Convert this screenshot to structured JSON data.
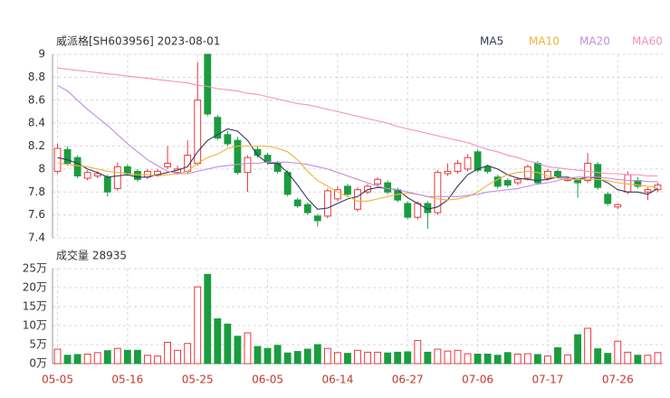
{
  "chart_data": {
    "type": "candlestick",
    "title": "威派格[SH603956] 2023-08-01",
    "categories": [
      "05-05",
      null,
      null,
      null,
      null,
      null,
      null,
      "05-16",
      null,
      null,
      null,
      null,
      null,
      null,
      "05-25",
      null,
      null,
      null,
      null,
      null,
      null,
      "06-05",
      null,
      null,
      null,
      null,
      null,
      null,
      "06-14",
      null,
      null,
      null,
      null,
      null,
      null,
      "06-27",
      null,
      null,
      null,
      null,
      null,
      null,
      "07-06",
      null,
      null,
      null,
      null,
      null,
      null,
      "07-17",
      null,
      null,
      null,
      null,
      null,
      null,
      "07-26",
      null,
      null,
      null,
      null
    ],
    "open": [
      7.98,
      8.17,
      8.1,
      7.92,
      7.94,
      7.93,
      7.83,
      8.02,
      7.98,
      7.93,
      7.95,
      8.02,
      7.97,
      7.98,
      8.05,
      9.0,
      8.45,
      8.3,
      8.25,
      7.97,
      8.17,
      8.12,
      8.05,
      7.97,
      7.73,
      7.69,
      7.59,
      7.59,
      7.74,
      7.85,
      7.65,
      7.8,
      7.87,
      7.88,
      7.82,
      7.7,
      7.58,
      7.7,
      7.62,
      7.96,
      7.98,
      8.0,
      8.15,
      8.02,
      7.93,
      7.9,
      7.88,
      7.92,
      8.05,
      7.92,
      7.98,
      7.9,
      7.9,
      7.9,
      8.04,
      7.78,
      7.67,
      7.8,
      7.9,
      7.8,
      7.82
    ],
    "high": [
      8.22,
      8.2,
      8.12,
      7.99,
      7.98,
      7.95,
      8.06,
      8.04,
      8.0,
      8.0,
      8.0,
      8.2,
      8.03,
      8.25,
      8.93,
      9.0,
      8.47,
      8.33,
      8.28,
      8.12,
      8.2,
      8.14,
      8.07,
      7.99,
      7.75,
      7.71,
      7.61,
      7.83,
      7.85,
      7.87,
      7.84,
      7.87,
      7.93,
      7.9,
      7.84,
      7.72,
      7.72,
      7.72,
      7.99,
      8.05,
      8.08,
      8.13,
      8.17,
      8.04,
      7.95,
      7.92,
      7.93,
      8.04,
      8.07,
      8.0,
      8.0,
      7.93,
      7.92,
      8.14,
      8.06,
      7.8,
      7.7,
      7.98,
      7.93,
      7.84,
      7.88
    ],
    "low": [
      7.96,
      8.03,
      7.92,
      7.9,
      7.92,
      7.76,
      7.81,
      7.94,
      7.89,
      7.91,
      7.93,
      8.0,
      7.95,
      7.96,
      8.03,
      8.46,
      8.25,
      8.2,
      7.95,
      7.8,
      8.1,
      8.04,
      7.96,
      7.76,
      7.66,
      7.6,
      7.5,
      7.57,
      7.72,
      7.76,
      7.63,
      7.78,
      7.85,
      7.78,
      7.71,
      7.56,
      7.56,
      7.48,
      7.6,
      7.94,
      7.96,
      7.98,
      7.97,
      7.96,
      7.83,
      7.84,
      7.86,
      7.9,
      7.86,
      7.9,
      7.92,
      7.89,
      7.75,
      7.88,
      7.82,
      7.68,
      7.65,
      7.78,
      7.83,
      7.73,
      7.8
    ],
    "close": [
      8.18,
      8.05,
      7.94,
      7.97,
      7.96,
      7.8,
      8.02,
      7.96,
      7.91,
      7.98,
      7.98,
      8.05,
      8.0,
      8.12,
      8.6,
      8.48,
      8.27,
      8.22,
      7.97,
      8.1,
      8.12,
      8.06,
      7.98,
      7.78,
      7.68,
      7.62,
      7.55,
      7.81,
      7.82,
      7.78,
      7.82,
      7.85,
      7.91,
      7.8,
      7.73,
      7.58,
      7.7,
      7.62,
      7.97,
      7.98,
      8.05,
      8.1,
      7.99,
      7.98,
      7.85,
      7.86,
      7.91,
      8.02,
      7.88,
      7.98,
      7.94,
      7.91,
      7.88,
      8.05,
      7.84,
      7.7,
      7.69,
      7.95,
      7.85,
      7.82,
      7.86
    ],
    "up_color": "#e8383d",
    "down_color": "#1a9c3f",
    "series": [
      {
        "name": "MA5",
        "color": "#333a5c",
        "values": [
          8.1,
          8.08,
          8.05,
          8.0,
          7.97,
          7.93,
          7.94,
          7.95,
          7.93,
          7.93,
          7.95,
          7.97,
          7.99,
          8.02,
          8.15,
          8.25,
          8.3,
          8.35,
          8.33,
          8.25,
          8.12,
          8.05,
          8.05,
          7.97,
          7.86,
          7.74,
          7.65,
          7.66,
          7.7,
          7.74,
          7.76,
          7.82,
          7.84,
          7.83,
          7.82,
          7.75,
          7.7,
          7.65,
          7.67,
          7.73,
          7.85,
          7.95,
          8.0,
          8.03,
          8.0,
          7.95,
          7.92,
          7.91,
          7.9,
          7.91,
          7.93,
          7.93,
          7.91,
          7.93,
          7.92,
          7.88,
          7.82,
          7.8,
          7.8,
          7.78,
          7.83
        ]
      },
      {
        "name": "MA10",
        "color": "#f2b335",
        "values": [
          8.05,
          8.04,
          8.03,
          8.02,
          8.0,
          7.98,
          7.97,
          7.96,
          7.95,
          7.95,
          7.94,
          7.95,
          7.96,
          7.98,
          8.05,
          8.1,
          8.13,
          8.18,
          8.2,
          8.2,
          8.2,
          8.2,
          8.18,
          8.15,
          8.08,
          7.98,
          7.9,
          7.85,
          7.8,
          7.76,
          7.72,
          7.72,
          7.74,
          7.76,
          7.78,
          7.79,
          7.78,
          7.76,
          7.74,
          7.73,
          7.74,
          7.76,
          7.8,
          7.86,
          7.91,
          7.95,
          7.97,
          7.98,
          7.97,
          7.94,
          7.92,
          7.91,
          7.91,
          7.91,
          7.91,
          7.9,
          7.88,
          7.87,
          7.86,
          7.85,
          7.84
        ]
      },
      {
        "name": "MA20",
        "color": "#c48de0",
        "values": [
          8.73,
          8.68,
          8.6,
          8.52,
          8.45,
          8.38,
          8.3,
          8.22,
          8.15,
          8.08,
          8.03,
          7.98,
          7.96,
          7.96,
          7.98,
          8.0,
          8.02,
          8.03,
          8.04,
          8.05,
          8.05,
          8.06,
          8.06,
          8.06,
          8.05,
          8.04,
          8.02,
          8.0,
          7.97,
          7.94,
          7.91,
          7.88,
          7.85,
          7.83,
          7.82,
          7.8,
          7.78,
          7.76,
          7.76,
          7.76,
          7.76,
          7.77,
          7.78,
          7.8,
          7.81,
          7.82,
          7.83,
          7.85,
          7.87,
          7.88,
          7.9,
          7.92,
          7.93,
          7.93,
          7.93,
          7.92,
          7.91,
          7.9,
          7.9,
          7.89,
          7.89
        ]
      },
      {
        "name": "MA60",
        "color": "#f490c0",
        "values": [
          8.88,
          8.87,
          8.86,
          8.85,
          8.84,
          8.83,
          8.82,
          8.81,
          8.8,
          8.79,
          8.78,
          8.77,
          8.76,
          8.75,
          8.73,
          8.72,
          8.7,
          8.69,
          8.68,
          8.66,
          8.65,
          8.63,
          8.61,
          8.59,
          8.57,
          8.56,
          8.54,
          8.52,
          8.5,
          8.48,
          8.46,
          8.44,
          8.42,
          8.4,
          8.37,
          8.35,
          8.33,
          8.31,
          8.29,
          8.27,
          8.25,
          8.23,
          8.2,
          8.17,
          8.15,
          8.12,
          8.1,
          8.07,
          8.05,
          8.02,
          8.01,
          8.0,
          7.99,
          7.98,
          7.97,
          7.96,
          7.96,
          7.95,
          7.95,
          7.94,
          7.94
        ]
      }
    ],
    "ylim": [
      7.4,
      9
    ],
    "yticks": [
      {
        "value": 7.4,
        "label": "7.4"
      },
      {
        "value": 7.6,
        "label": "7.6"
      },
      {
        "value": 7.8,
        "label": "7.8"
      },
      {
        "value": 8,
        "label": "8"
      },
      {
        "value": 8.2,
        "label": "8.2"
      },
      {
        "value": 8.4,
        "label": "8.4"
      },
      {
        "value": 8.6,
        "label": "8.6"
      },
      {
        "value": 8.8,
        "label": "8.8"
      },
      {
        "value": 9,
        "label": "9"
      }
    ],
    "volume_title": "成交量 28935",
    "volume": [
      3.8,
      2.2,
      2.4,
      2.5,
      2.9,
      3.4,
      4.0,
      3.5,
      3.5,
      2.2,
      2.0,
      5.6,
      3.5,
      5.3,
      20.2,
      23.5,
      11.8,
      10.4,
      7.2,
      8.1,
      4.5,
      4.0,
      4.8,
      2.8,
      3.2,
      3.8,
      5.0,
      4.0,
      2.9,
      2.7,
      3.5,
      3.0,
      3.0,
      2.8,
      3.0,
      3.1,
      6.1,
      3.0,
      3.8,
      3.3,
      3.5,
      2.6,
      2.5,
      2.5,
      2.2,
      2.9,
      2.5,
      2.6,
      2.4,
      2.0,
      4.2,
      2.3,
      7.6,
      9.3,
      3.9,
      2.7,
      5.9,
      3.0,
      2.2,
      2.2,
      2.9
    ],
    "vlim": [
      0,
      25
    ],
    "vticks": [
      {
        "value": 0,
        "label": "0万"
      },
      {
        "value": 5,
        "label": "5万"
      },
      {
        "value": 10,
        "label": "10万"
      },
      {
        "value": 15,
        "label": "15万"
      },
      {
        "value": 20,
        "label": "20万"
      },
      {
        "value": 25,
        "label": "25万"
      }
    ],
    "grid": true
  }
}
